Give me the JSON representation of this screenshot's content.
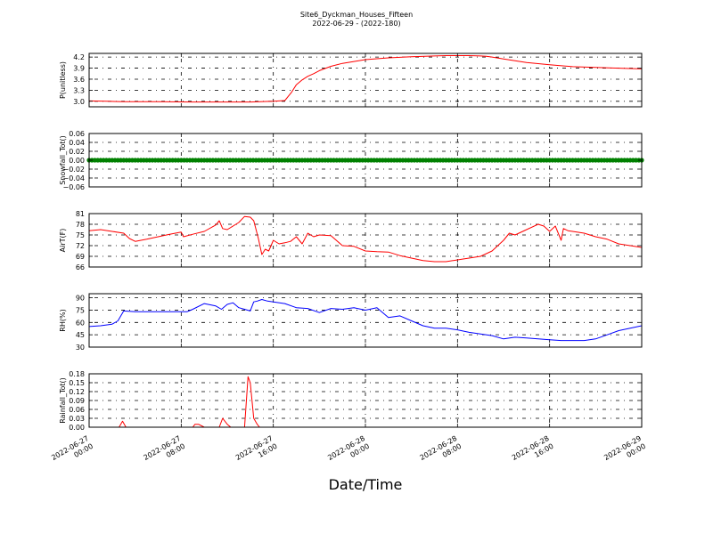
{
  "figure": {
    "title_line1": "Site6_Dyckman_Houses_Fifteen",
    "title_line2": "2022-06-29 - (2022-180)",
    "xlabel": "Date/Time"
  },
  "chart_data": [
    {
      "type": "line",
      "ylabel": "P(unitless)",
      "color": "#ff0000",
      "ylim": [
        2.85,
        4.3
      ],
      "yticks": [
        3.0,
        3.3,
        3.6,
        3.9,
        4.2
      ],
      "ytick_labels": [
        "3.0",
        "3.3",
        "3.6",
        "3.9",
        "4.2"
      ],
      "grid": true,
      "x": [
        0,
        1.5,
        3,
        6,
        9,
        12,
        14,
        16,
        17,
        17.6,
        18,
        18.5,
        19,
        19.5,
        20,
        21,
        22,
        23,
        24,
        26,
        28,
        30,
        31,
        32,
        33,
        34,
        34.5,
        35,
        36,
        38,
        40,
        42,
        44,
        46,
        48
      ],
      "values": [
        3.01,
        3.0,
        2.99,
        2.99,
        2.98,
        2.98,
        2.98,
        3.0,
        3.02,
        3.25,
        3.45,
        3.58,
        3.68,
        3.75,
        3.83,
        3.95,
        4.03,
        4.08,
        4.13,
        4.18,
        4.21,
        4.23,
        4.24,
        4.24,
        4.24,
        4.23,
        4.22,
        4.2,
        4.15,
        4.05,
        3.99,
        3.94,
        3.92,
        3.9,
        3.88
      ]
    },
    {
      "type": "scatter",
      "ylabel": "Snowfall_Tot()",
      "color": "#008000",
      "ylim": [
        -0.06,
        0.06
      ],
      "yticks": [
        -0.06,
        -0.04,
        -0.02,
        0.0,
        0.02,
        0.04,
        0.06
      ],
      "ytick_labels": [
        "−0.06",
        "−0.04",
        "−0.02",
        "0.00",
        "0.02",
        "0.04",
        "0.06"
      ],
      "grid": true,
      "constant_value": 0.0,
      "x_start": 0,
      "x_end": 48,
      "x_step": 0.25
    },
    {
      "type": "line",
      "ylabel": "AirT(F)",
      "color": "#ff0000",
      "ylim": [
        66,
        81
      ],
      "yticks": [
        66,
        69,
        72,
        75,
        78,
        81
      ],
      "ytick_labels": [
        "66",
        "69",
        "72",
        "75",
        "78",
        "81"
      ],
      "grid": true,
      "x": [
        0,
        1,
        2,
        3,
        3.5,
        4,
        5,
        6,
        7,
        8,
        8.2,
        9,
        10,
        11,
        11.3,
        11.6,
        12,
        13,
        13.5,
        14,
        14.3,
        14.7,
        15,
        15.3,
        15.6,
        16,
        16.5,
        17,
        17.5,
        18,
        18.5,
        19,
        19.5,
        20,
        21,
        22,
        23,
        24,
        25,
        26,
        27,
        28,
        29,
        30,
        31,
        32,
        33,
        34,
        35,
        36,
        36.5,
        37,
        38,
        39,
        39.5,
        40,
        40.5,
        41,
        41.2,
        41.6,
        42,
        43,
        44,
        45,
        46,
        47,
        48
      ],
      "values": [
        76.2,
        76.5,
        76.0,
        75.5,
        74.0,
        73.2,
        73.8,
        74.5,
        75.2,
        75.8,
        74.5,
        75.2,
        76.0,
        77.8,
        79.0,
        76.8,
        76.5,
        78.5,
        80.2,
        80.0,
        79.0,
        74.0,
        69.5,
        71.0,
        70.5,
        73.5,
        72.5,
        72.8,
        73.2,
        74.5,
        72.5,
        75.5,
        74.5,
        75.0,
        74.8,
        72.0,
        71.8,
        70.5,
        70.3,
        70.2,
        69.2,
        68.5,
        67.8,
        67.5,
        67.5,
        68.0,
        68.5,
        69.0,
        70.5,
        73.5,
        75.5,
        75.0,
        76.5,
        78.0,
        77.5,
        76.0,
        77.5,
        73.5,
        76.8,
        76.2,
        76.0,
        75.5,
        74.5,
        73.8,
        72.5,
        72.0,
        71.5
      ]
    },
    {
      "type": "line",
      "ylabel": "RH(%)",
      "color": "#0000ff",
      "ylim": [
        30,
        95
      ],
      "yticks": [
        30,
        45,
        60,
        75,
        90
      ],
      "ytick_labels": [
        "30",
        "45",
        "60",
        "75",
        "90"
      ],
      "grid": true,
      "x": [
        0,
        1,
        2,
        2.5,
        3,
        4,
        5,
        6,
        7,
        8,
        8.5,
        9,
        10,
        11,
        11.5,
        12,
        12.5,
        13,
        13.5,
        14,
        14.3,
        14.6,
        15,
        15.5,
        16,
        17,
        18,
        19,
        20,
        21,
        22,
        23,
        24,
        25,
        26,
        27,
        28,
        29,
        30,
        31,
        32,
        33,
        34,
        35,
        36,
        37,
        38,
        39,
        40,
        41,
        42,
        43,
        44,
        45,
        46,
        47,
        48
      ],
      "values": [
        55,
        56,
        58,
        62,
        74,
        73,
        73,
        73,
        73,
        73,
        73,
        76,
        83,
        80,
        76,
        82,
        84,
        78,
        76,
        74,
        85,
        86,
        88,
        86,
        85,
        83,
        78,
        77,
        72,
        77,
        76,
        78,
        75,
        78,
        66,
        68,
        62,
        56,
        53,
        53,
        51,
        48,
        46,
        44,
        40,
        42,
        41,
        40,
        39,
        38,
        38,
        38,
        40,
        45,
        50,
        53,
        56
      ]
    },
    {
      "type": "line",
      "ylabel": "Rainfall_Tot()",
      "color": "#ff0000",
      "ylim": [
        0,
        0.18
      ],
      "yticks": [
        0.0,
        0.03,
        0.06,
        0.09,
        0.12,
        0.15,
        0.18
      ],
      "ytick_labels": [
        "0.00",
        "0.03",
        "0.06",
        "0.09",
        "0.12",
        "0.15",
        "0.18"
      ],
      "grid": true,
      "x": [
        0,
        2.6,
        2.9,
        3.2,
        9,
        9.2,
        9.5,
        10.0,
        10.3,
        11.3,
        11.6,
        12.0,
        12.3,
        13.5,
        13.8,
        14.0,
        14.3,
        14.6,
        14.8,
        15.0,
        48
      ],
      "values": [
        0,
        0,
        0.02,
        0,
        0,
        0.01,
        0.01,
        0,
        0,
        0,
        0.03,
        0.01,
        0,
        0,
        0.17,
        0.15,
        0.03,
        0.01,
        0,
        0,
        0
      ]
    }
  ],
  "x_axis": {
    "range_hours": [
      0,
      48
    ],
    "ticks_hours": [
      0,
      8,
      16,
      24,
      32,
      40,
      48
    ],
    "tick_labels_line1": [
      "2022-06-27",
      "2022-06-27",
      "2022-06-27",
      "2022-06-28",
      "2022-06-28",
      "2022-06-28",
      "2022-06-29"
    ],
    "tick_labels_line2": [
      "00:00",
      "08:00",
      "16:00",
      "00:00",
      "08:00",
      "16:00",
      "00:00"
    ]
  }
}
